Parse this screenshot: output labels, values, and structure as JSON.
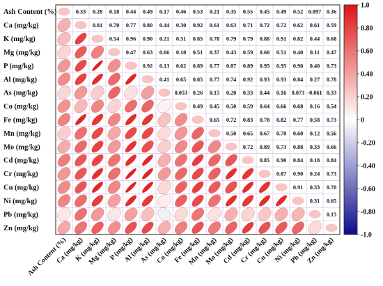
{
  "chart_data": {
    "type": "heatmap",
    "variant": "correlation-matrix",
    "upper_triangle": "numeric-labels",
    "lower_triangle": "ellipses",
    "grid": true,
    "legend": "right",
    "variables": [
      "Ash Content (%)",
      "Ca (mg/kg)",
      "K (mg/kg)",
      "Mg (mg/kg)",
      "P (mg/kg)",
      "Al (mg/kg)",
      "As (mg/kg)",
      "Co (mg/kg)",
      "Fe (mg/kg)",
      "Mn (mg/kg)",
      "Mo (mg/kg)",
      "Cd (mg/kg)",
      "Cr (mg/kg)",
      "Cu (mg/kg)",
      "Ni (mg/kg)",
      "Pb (mg/kg)",
      "Zn (mg/kg)"
    ],
    "matrix": [
      [
        1,
        0.33,
        0.28,
        0.18,
        0.44,
        0.49,
        0.17,
        0.46,
        0.53,
        0.21,
        0.35,
        0.55,
        0.45,
        0.49,
        0.52,
        0.097,
        0.36
      ],
      [
        0.33,
        1,
        0.81,
        0.7,
        0.77,
        0.8,
        0.44,
        0.3,
        0.92,
        0.61,
        0.63,
        0.71,
        0.72,
        0.72,
        0.62,
        0.61,
        0.59
      ],
      [
        0.28,
        0.81,
        1,
        0.54,
        0.96,
        0.9,
        0.21,
        0.51,
        0.85,
        0.78,
        0.79,
        0.79,
        0.88,
        0.91,
        0.82,
        0.44,
        0.68
      ],
      [
        0.18,
        0.7,
        0.54,
        1,
        0.47,
        0.63,
        0.66,
        0.18,
        0.51,
        0.37,
        0.43,
        0.59,
        0.6,
        0.51,
        0.4,
        0.11,
        0.47
      ],
      [
        0.44,
        0.77,
        0.96,
        0.47,
        1,
        0.92,
        0.13,
        0.62,
        0.89,
        0.77,
        0.87,
        0.89,
        0.95,
        0.95,
        0.9,
        0.4,
        0.73
      ],
      [
        0.49,
        0.8,
        0.9,
        0.63,
        0.92,
        1,
        0.41,
        0.65,
        0.85,
        0.77,
        0.74,
        0.92,
        0.93,
        0.93,
        0.84,
        0.27,
        0.78
      ],
      [
        0.17,
        0.44,
        0.21,
        0.66,
        0.13,
        0.41,
        1,
        0.053,
        0.26,
        0.15,
        0.2,
        0.33,
        0.44,
        0.16,
        0.073,
        -0.061,
        0.33
      ],
      [
        0.46,
        0.3,
        0.51,
        0.18,
        0.62,
        0.65,
        0.053,
        1,
        0.49,
        0.45,
        0.5,
        0.59,
        0.64,
        0.66,
        0.68,
        0.16,
        0.54
      ],
      [
        0.53,
        0.92,
        0.85,
        0.51,
        0.89,
        0.85,
        0.26,
        0.49,
        1,
        0.65,
        0.72,
        0.83,
        0.78,
        0.82,
        0.77,
        0.58,
        0.73
      ],
      [
        0.21,
        0.61,
        0.78,
        0.37,
        0.77,
        0.77,
        0.15,
        0.45,
        0.65,
        1,
        0.5,
        0.65,
        0.67,
        0.7,
        0.6,
        0.12,
        0.56
      ],
      [
        0.35,
        0.63,
        0.79,
        0.43,
        0.87,
        0.74,
        0.2,
        0.5,
        0.72,
        0.5,
        1,
        0.72,
        0.89,
        0.73,
        0.88,
        0.33,
        0.66
      ],
      [
        0.55,
        0.71,
        0.79,
        0.59,
        0.89,
        0.92,
        0.33,
        0.59,
        0.83,
        0.65,
        0.72,
        1,
        0.85,
        0.9,
        0.84,
        0.18,
        0.84
      ],
      [
        0.45,
        0.72,
        0.88,
        0.6,
        0.95,
        0.93,
        0.44,
        0.64,
        0.78,
        0.67,
        0.89,
        0.85,
        1,
        0.87,
        0.9,
        0.24,
        0.73
      ],
      [
        0.49,
        0.72,
        0.91,
        0.51,
        0.95,
        0.93,
        0.16,
        0.66,
        0.82,
        0.7,
        0.73,
        0.9,
        0.87,
        1,
        0.91,
        0.33,
        0.7
      ],
      [
        0.52,
        0.62,
        0.82,
        0.4,
        0.9,
        0.84,
        0.073,
        0.68,
        0.77,
        0.6,
        0.88,
        0.84,
        0.9,
        0.91,
        1,
        0.31,
        0.65
      ],
      [
        0.097,
        0.61,
        0.44,
        0.11,
        0.4,
        0.27,
        -0.061,
        0.16,
        0.58,
        0.12,
        0.33,
        0.18,
        0.24,
        0.33,
        0.31,
        1,
        0.15
      ],
      [
        0.36,
        0.59,
        0.68,
        0.47,
        0.73,
        0.78,
        0.33,
        0.54,
        0.73,
        0.56,
        0.66,
        0.84,
        0.73,
        0.7,
        0.65,
        0.15,
        1
      ]
    ],
    "value_labels": [
      [
        null,
        "0.33",
        "0.28",
        "0.18",
        "0.44",
        "0.49",
        "0.17",
        "0.46",
        "0.53",
        "0.21",
        "0.35",
        "0.55",
        "0.45",
        "0.49",
        "0.52",
        "0.097",
        "0.36"
      ],
      [
        null,
        null,
        "0.81",
        "0.70",
        "0.77",
        "0.80",
        "0.44",
        "0.30",
        "0.92",
        "0.61",
        "0.63",
        "0.71",
        "0.72",
        "0.72",
        "0.62",
        "0.61",
        "0.59"
      ],
      [
        null,
        null,
        null,
        "0.54",
        "0.96",
        "0.90",
        "0.21",
        "0.51",
        "0.85",
        "0.78",
        "0.79",
        "0.79",
        "0.88",
        "0.91",
        "0.82",
        "0.44",
        "0.68"
      ],
      [
        null,
        null,
        null,
        null,
        "0.47",
        "0.63",
        "0.66",
        "0.18",
        "0.51",
        "0.37",
        "0.43",
        "0.59",
        "0.60",
        "0.51",
        "0.40",
        "0.11",
        "0.47"
      ],
      [
        null,
        null,
        null,
        null,
        null,
        "0.92",
        "0.13",
        "0.62",
        "0.89",
        "0.77",
        "0.87",
        "0.89",
        "0.95",
        "0.95",
        "0.90",
        "0.40",
        "0.73"
      ],
      [
        null,
        null,
        null,
        null,
        null,
        null,
        "0.41",
        "0.65",
        "0.85",
        "0.77",
        "0.74",
        "0.92",
        "0.93",
        "0.93",
        "0.84",
        "0.27",
        "0.78"
      ],
      [
        null,
        null,
        null,
        null,
        null,
        null,
        null,
        "0.053",
        "0.26",
        "0.15",
        "0.20",
        "0.33",
        "0.44",
        "0.16",
        "0.073",
        "-0.061",
        "0.33"
      ],
      [
        null,
        null,
        null,
        null,
        null,
        null,
        null,
        null,
        "0.49",
        "0.45",
        "0.50",
        "0.59",
        "0.64",
        "0.66",
        "0.68",
        "0.16",
        "0.54"
      ],
      [
        null,
        null,
        null,
        null,
        null,
        null,
        null,
        null,
        null,
        "0.65",
        "0.72",
        "0.83",
        "0.78",
        "0.82",
        "0.77",
        "0.58",
        "0.73"
      ],
      [
        null,
        null,
        null,
        null,
        null,
        null,
        null,
        null,
        null,
        null,
        "0.50",
        "0.65",
        "0.67",
        "0.70",
        "0.60",
        "0.12",
        "0.56"
      ],
      [
        null,
        null,
        null,
        null,
        null,
        null,
        null,
        null,
        null,
        null,
        null,
        "0.72",
        "0.89",
        "0.73",
        "0.88",
        "0.33",
        "0.66"
      ],
      [
        null,
        null,
        null,
        null,
        null,
        null,
        null,
        null,
        null,
        null,
        null,
        null,
        "0.85",
        "0.90",
        "0.84",
        "0.18",
        "0.84"
      ],
      [
        null,
        null,
        null,
        null,
        null,
        null,
        null,
        null,
        null,
        null,
        null,
        null,
        null,
        "0.87",
        "0.90",
        "0.24",
        "0.73"
      ],
      [
        null,
        null,
        null,
        null,
        null,
        null,
        null,
        null,
        null,
        null,
        null,
        null,
        null,
        null,
        "0.91",
        "0.33",
        "0.70"
      ],
      [
        null,
        null,
        null,
        null,
        null,
        null,
        null,
        null,
        null,
        null,
        null,
        null,
        null,
        null,
        null,
        "0.31",
        "0.65"
      ],
      [
        null,
        null,
        null,
        null,
        null,
        null,
        null,
        null,
        null,
        null,
        null,
        null,
        null,
        null,
        null,
        null,
        "0.15"
      ],
      [
        null,
        null,
        null,
        null,
        null,
        null,
        null,
        null,
        null,
        null,
        null,
        null,
        null,
        null,
        null,
        null,
        null
      ]
    ],
    "colorbar": {
      "range": [
        -1.0,
        1.0
      ],
      "ticks": [
        "1.0",
        "0.80",
        "0.60",
        "0.40",
        "0.20",
        "0",
        "-0.20",
        "-0.40",
        "-0.60",
        "-0.80",
        "-1.0"
      ],
      "colors": {
        "negative": "#0c0c8f",
        "zero": "#ffffff",
        "positive": "#e01414"
      }
    },
    "colors": {
      "grid": "#d9c2e8",
      "border": "#222222"
    }
  }
}
